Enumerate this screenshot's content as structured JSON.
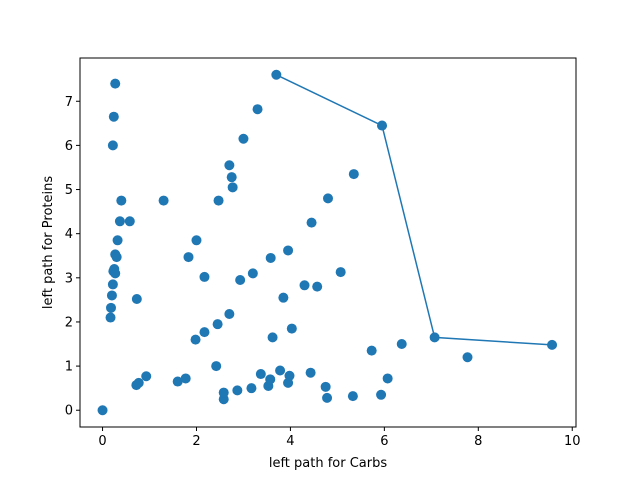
{
  "chart_data": {
    "type": "scatter",
    "title": "",
    "xlabel": "left path for Carbs",
    "ylabel": "left path for Proteins",
    "xlim": [
      -0.48,
      10.08
    ],
    "ylim": [
      -0.38,
      7.98
    ],
    "xticks": [
      0,
      2,
      4,
      6,
      8,
      10
    ],
    "yticks": [
      0,
      1,
      2,
      3,
      4,
      5,
      6,
      7
    ],
    "grid": false,
    "colors": {
      "marker": "#1f77b4",
      "line": "#1f77b4",
      "axes": "#000000"
    },
    "series": [
      {
        "type": "scatter",
        "points": [
          [
            0.0,
            0.0
          ],
          [
            0.17,
            2.1
          ],
          [
            0.18,
            2.32
          ],
          [
            0.2,
            2.6
          ],
          [
            0.22,
            2.85
          ],
          [
            0.23,
            3.15
          ],
          [
            0.25,
            3.2
          ],
          [
            0.27,
            3.1
          ],
          [
            0.27,
            3.53
          ],
          [
            0.3,
            3.47
          ],
          [
            0.32,
            3.85
          ],
          [
            0.37,
            4.28
          ],
          [
            0.4,
            4.75
          ],
          [
            0.58,
            4.28
          ],
          [
            0.22,
            6.0
          ],
          [
            0.24,
            6.65
          ],
          [
            0.27,
            7.4
          ],
          [
            0.72,
            0.57
          ],
          [
            0.77,
            0.62
          ],
          [
            0.73,
            2.52
          ],
          [
            0.93,
            0.77
          ],
          [
            1.3,
            4.75
          ],
          [
            1.6,
            0.65
          ],
          [
            1.77,
            0.72
          ],
          [
            1.83,
            3.47
          ],
          [
            2.0,
            3.85
          ],
          [
            1.98,
            1.6
          ],
          [
            2.17,
            1.77
          ],
          [
            2.17,
            3.02
          ],
          [
            2.42,
            1.0
          ],
          [
            2.45,
            1.95
          ],
          [
            2.47,
            4.75
          ],
          [
            2.58,
            0.25
          ],
          [
            2.58,
            0.4
          ],
          [
            2.7,
            2.18
          ],
          [
            2.7,
            5.55
          ],
          [
            2.75,
            5.28
          ],
          [
            2.77,
            5.05
          ],
          [
            2.87,
            0.45
          ],
          [
            2.93,
            2.95
          ],
          [
            3.0,
            6.15
          ],
          [
            3.17,
            0.5
          ],
          [
            3.2,
            3.1
          ],
          [
            3.3,
            6.82
          ],
          [
            3.37,
            0.82
          ],
          [
            3.53,
            0.55
          ],
          [
            3.57,
            0.7
          ],
          [
            3.58,
            3.45
          ],
          [
            3.62,
            1.65
          ],
          [
            3.78,
            0.9
          ],
          [
            3.85,
            2.55
          ],
          [
            3.95,
            0.62
          ],
          [
            3.95,
            3.62
          ],
          [
            3.98,
            0.78
          ],
          [
            4.03,
            1.85
          ],
          [
            4.3,
            2.83
          ],
          [
            4.43,
            0.85
          ],
          [
            4.45,
            4.25
          ],
          [
            4.57,
            2.8
          ],
          [
            4.75,
            0.53
          ],
          [
            4.78,
            0.28
          ],
          [
            4.8,
            4.8
          ],
          [
            5.07,
            3.13
          ],
          [
            5.33,
            0.32
          ],
          [
            5.35,
            5.35
          ],
          [
            5.73,
            1.35
          ],
          [
            5.93,
            0.35
          ],
          [
            6.07,
            0.72
          ],
          [
            6.37,
            1.5
          ],
          [
            7.77,
            1.2
          ],
          [
            3.7,
            7.6
          ],
          [
            5.95,
            6.45
          ],
          [
            7.07,
            1.65
          ],
          [
            9.57,
            1.48
          ]
        ]
      },
      {
        "type": "line",
        "points": [
          [
            3.7,
            7.6
          ],
          [
            5.95,
            6.45
          ],
          [
            7.07,
            1.65
          ],
          [
            9.57,
            1.48
          ]
        ]
      }
    ]
  }
}
